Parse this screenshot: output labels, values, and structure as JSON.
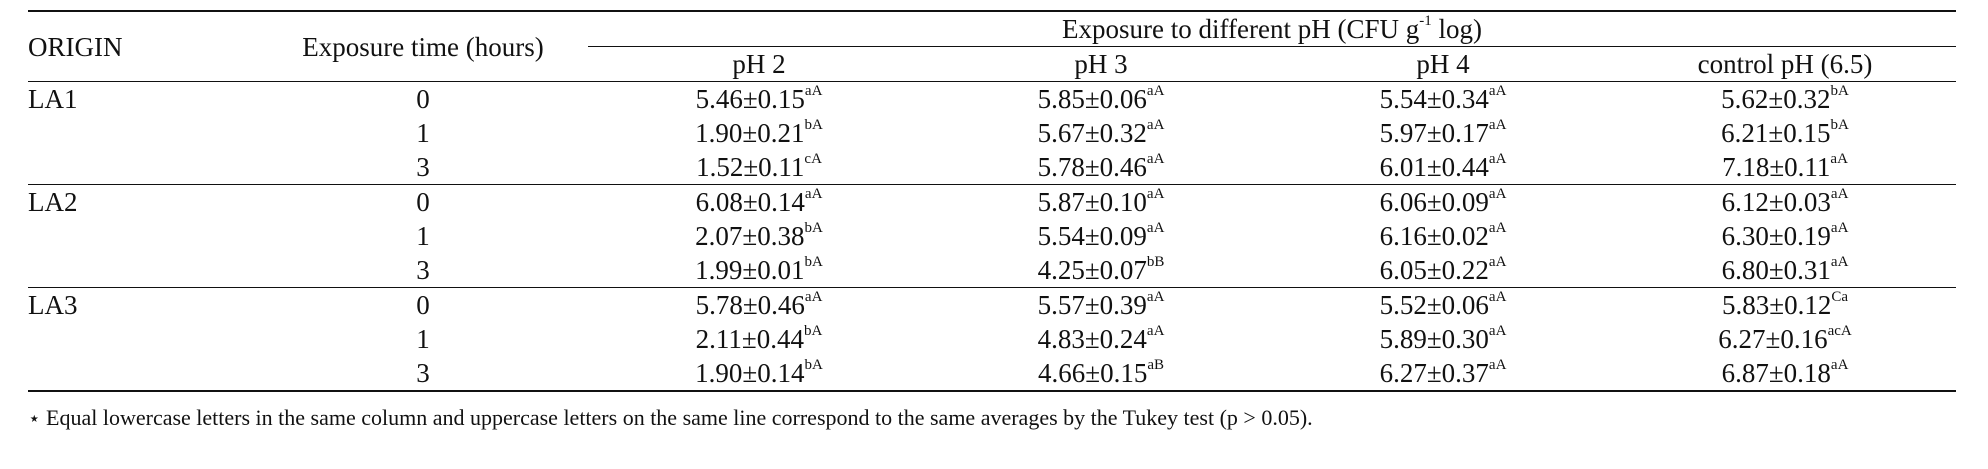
{
  "table": {
    "headers": {
      "origin": "ORIGIN",
      "exposure_time": "Exposure time (hours)",
      "spanning_pre": "Exposure to different pH (CFU g",
      "spanning_sup": "-1",
      "spanning_post": " log)",
      "columns": [
        "pH 2",
        "pH 3",
        "pH 4",
        "control pH (6.5)"
      ]
    },
    "rows": [
      {
        "origin": "LA1",
        "time": "0",
        "cells": [
          {
            "v": "5.46±0.15",
            "s": "aA"
          },
          {
            "v": "5.85±0.06",
            "s": "aA"
          },
          {
            "v": "5.54±0.34",
            "s": "aA"
          },
          {
            "v": "5.62±0.32",
            "s": "bA"
          }
        ]
      },
      {
        "origin": "",
        "time": "1",
        "cells": [
          {
            "v": "1.90±0.21",
            "s": "bA"
          },
          {
            "v": "5.67±0.32",
            "s": "aA"
          },
          {
            "v": "5.97±0.17",
            "s": "aA"
          },
          {
            "v": "6.21±0.15",
            "s": "bA"
          }
        ]
      },
      {
        "origin": "",
        "time": "3",
        "cells": [
          {
            "v": "1.52±0.11",
            "s": "cA"
          },
          {
            "v": "5.78±0.46",
            "s": "aA"
          },
          {
            "v": "6.01±0.44",
            "s": "aA"
          },
          {
            "v": "7.18±0.11",
            "s": "aA"
          }
        ]
      },
      {
        "origin": "LA2",
        "time": "0",
        "cells": [
          {
            "v": "6.08±0.14",
            "s": "aA"
          },
          {
            "v": "5.87±0.10",
            "s": "aA"
          },
          {
            "v": "6.06±0.09",
            "s": "aA"
          },
          {
            "v": "6.12±0.03",
            "s": "aA"
          }
        ]
      },
      {
        "origin": "",
        "time": "1",
        "cells": [
          {
            "v": "2.07±0.38",
            "s": "bA"
          },
          {
            "v": "5.54±0.09",
            "s": "aA"
          },
          {
            "v": "6.16±0.02",
            "s": "aA"
          },
          {
            "v": "6.30±0.19",
            "s": "aA"
          }
        ]
      },
      {
        "origin": "",
        "time": "3",
        "cells": [
          {
            "v": "1.99±0.01",
            "s": "bA"
          },
          {
            "v": "4.25±0.07",
            "s": "bB"
          },
          {
            "v": "6.05±0.22",
            "s": "aA"
          },
          {
            "v": "6.80±0.31",
            "s": "aA"
          }
        ]
      },
      {
        "origin": "LA3",
        "time": "0",
        "cells": [
          {
            "v": "5.78±0.46",
            "s": "aA"
          },
          {
            "v": "5.57±0.39",
            "s": "aA"
          },
          {
            "v": "5.52±0.06",
            "s": "aA"
          },
          {
            "v": "5.83±0.12",
            "s": "Ca"
          }
        ]
      },
      {
        "origin": "",
        "time": "1",
        "cells": [
          {
            "v": "2.11±0.44",
            "s": "bA"
          },
          {
            "v": "4.83±0.24",
            "s": "aA"
          },
          {
            "v": "5.89±0.30",
            "s": "aA"
          },
          {
            "v": "6.27±0.16",
            "s": "acA"
          }
        ]
      },
      {
        "origin": "",
        "time": "3",
        "cells": [
          {
            "v": "1.90±0.14",
            "s": "bA"
          },
          {
            "v": "4.66±0.15",
            "s": "aB"
          },
          {
            "v": "6.27±0.37",
            "s": "aA"
          },
          {
            "v": "6.87±0.18",
            "s": "aA"
          }
        ]
      }
    ]
  },
  "footnote": {
    "symbol": "⋆",
    "text": " Equal lowercase letters in the same column and uppercase letters on the same line correspond to the same averages by the Tukey test (p > 0.05)."
  }
}
